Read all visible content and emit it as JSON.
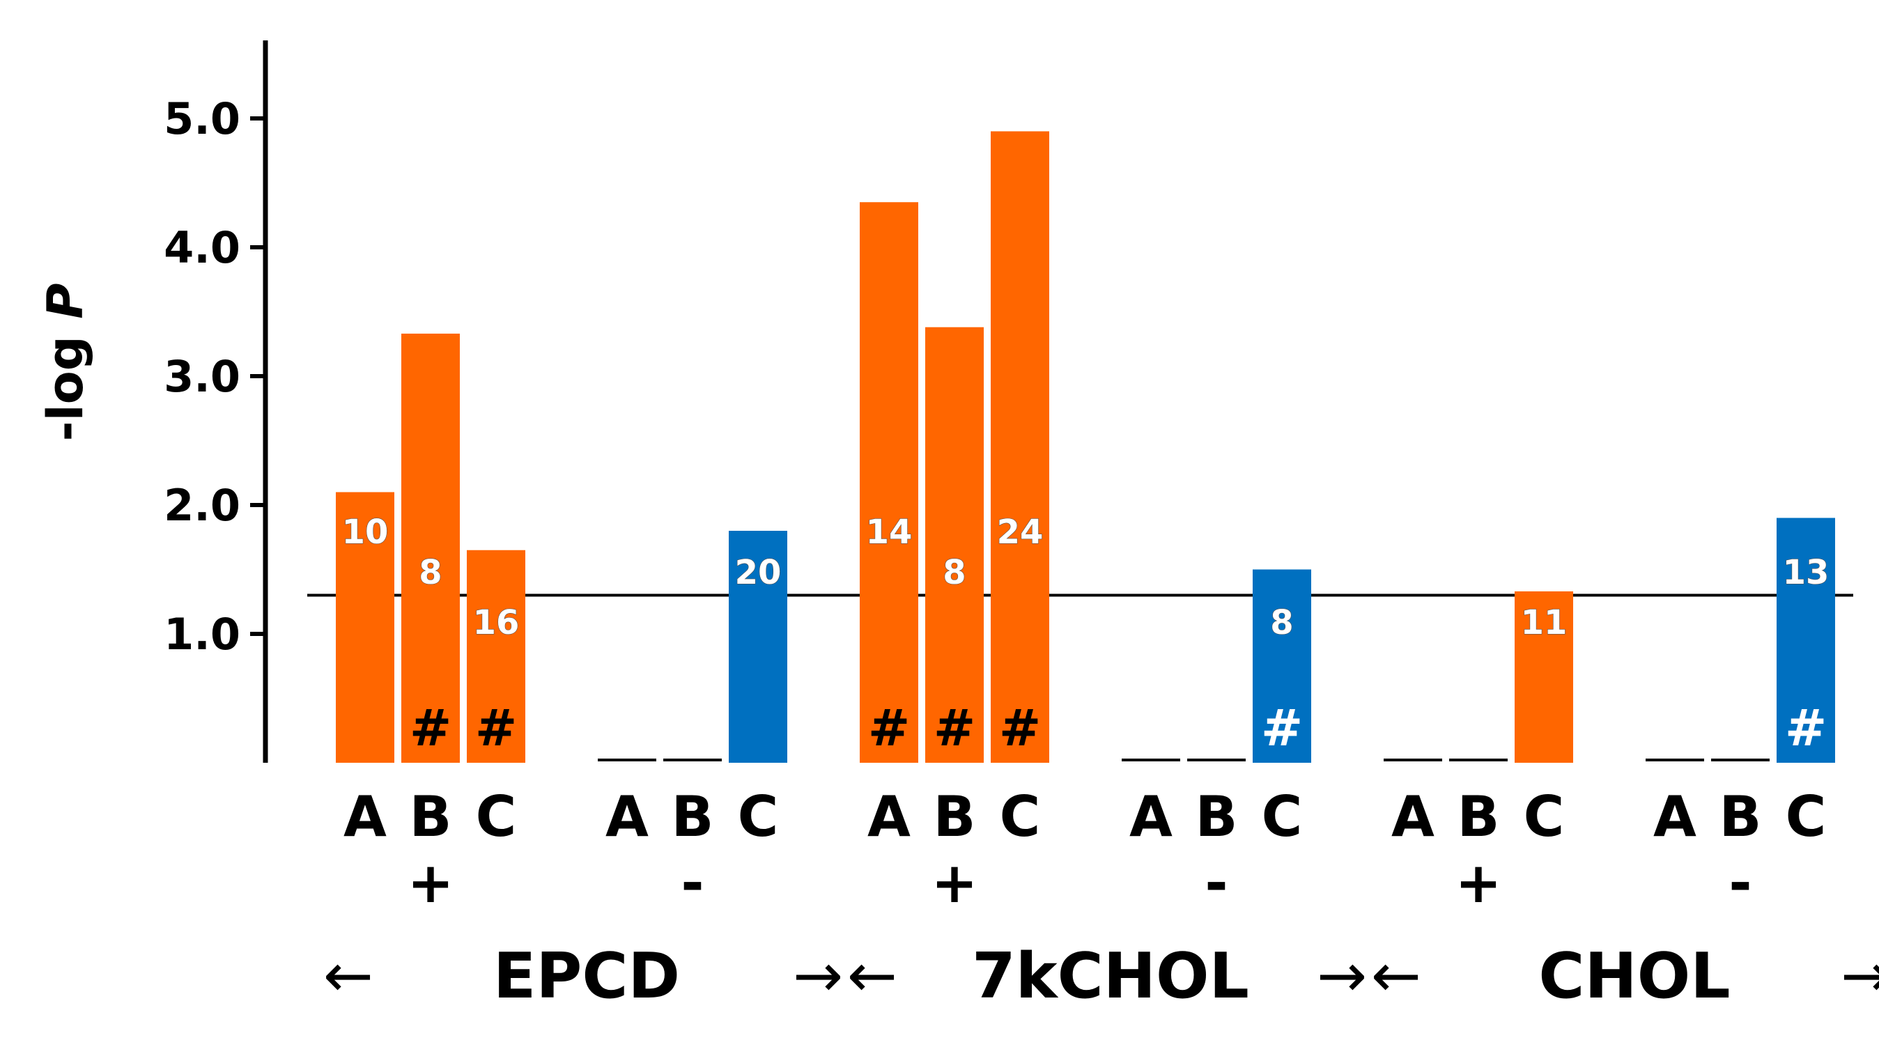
{
  "chart_data": {
    "type": "bar",
    "title": "",
    "ylabel": "-log P",
    "xlabel": "",
    "ylim": [
      0,
      5.5
    ],
    "yticks": [
      "1.0",
      "2.0",
      "3.0",
      "4.0",
      "5.0"
    ],
    "threshold": 1.3,
    "colors": {
      "up": "#ff6600",
      "down": "#0070c0",
      "axis": "#000000"
    },
    "groups": [
      {
        "name": "EPCD",
        "arrow_left": "←",
        "arrow_right": "→",
        "subgroups": [
          {
            "sign": "+",
            "bars": [
              {
                "label": "A",
                "value": 2.1,
                "count": "10",
                "hash": "",
                "color": "up"
              },
              {
                "label": "B",
                "value": 3.33,
                "count": "8",
                "hash": "#",
                "color": "up"
              },
              {
                "label": "C",
                "value": 1.65,
                "count": "16",
                "hash": "#",
                "color": "up"
              }
            ]
          },
          {
            "sign": "-",
            "bars": [
              {
                "label": "A",
                "value": null,
                "count": "",
                "hash": "",
                "color": "down"
              },
              {
                "label": "B",
                "value": null,
                "count": "",
                "hash": "",
                "color": "down"
              },
              {
                "label": "C",
                "value": 1.8,
                "count": "20",
                "hash": "",
                "color": "down"
              }
            ]
          }
        ]
      },
      {
        "name": "7kCHOL",
        "arrow_left": "←",
        "arrow_right": "→",
        "subgroups": [
          {
            "sign": "+",
            "bars": [
              {
                "label": "A",
                "value": 4.35,
                "count": "14",
                "hash": "#",
                "color": "up"
              },
              {
                "label": "B",
                "value": 3.38,
                "count": "8",
                "hash": "#",
                "color": "up"
              },
              {
                "label": "C",
                "value": 4.9,
                "count": "24",
                "hash": "#",
                "color": "up"
              }
            ]
          },
          {
            "sign": "-",
            "bars": [
              {
                "label": "A",
                "value": null,
                "count": "",
                "hash": "",
                "color": "down"
              },
              {
                "label": "B",
                "value": null,
                "count": "",
                "hash": "",
                "color": "down"
              },
              {
                "label": "C",
                "value": 1.5,
                "count": "8",
                "hash": "#",
                "color": "down"
              }
            ]
          }
        ]
      },
      {
        "name": "CHOL",
        "arrow_left": "←",
        "arrow_right": "→",
        "subgroups": [
          {
            "sign": "+",
            "bars": [
              {
                "label": "A",
                "value": null,
                "count": "",
                "hash": "",
                "color": "up"
              },
              {
                "label": "B",
                "value": null,
                "count": "",
                "hash": "",
                "color": "up"
              },
              {
                "label": "C",
                "value": 1.33,
                "count": "11",
                "hash": "",
                "color": "up"
              }
            ]
          },
          {
            "sign": "-",
            "bars": [
              {
                "label": "A",
                "value": null,
                "count": "",
                "hash": "",
                "color": "down"
              },
              {
                "label": "B",
                "value": null,
                "count": "",
                "hash": "",
                "color": "down"
              },
              {
                "label": "C",
                "value": 1.9,
                "count": "13",
                "hash": "#",
                "color": "down"
              }
            ]
          }
        ]
      }
    ]
  }
}
